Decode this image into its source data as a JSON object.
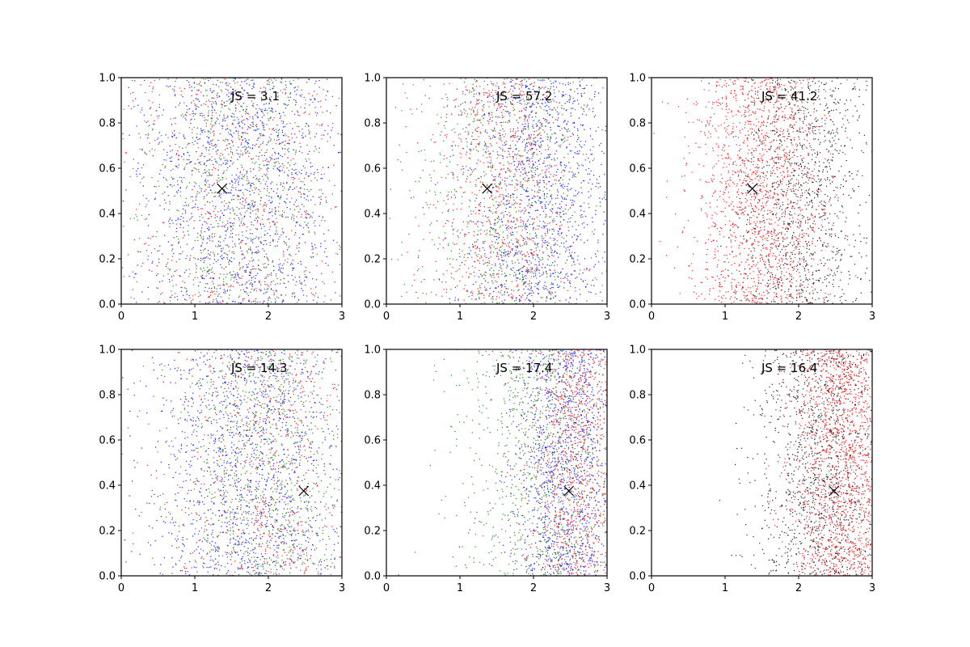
{
  "colors": {
    "blue": "#0000ff",
    "green": "#008000",
    "red": "#ff0000",
    "black": "#000000"
  },
  "chart_data": [
    {
      "type": "scatter",
      "annotation": "JS = 3.1",
      "xlim": [
        0,
        3
      ],
      "ylim": [
        0,
        1
      ],
      "xticks": [
        "0",
        "1",
        "2",
        "3"
      ],
      "yticks": [
        "0.0",
        "0.2",
        "0.4",
        "0.6",
        "0.8",
        "1.0"
      ],
      "marker": {
        "x": 1.37,
        "y": 0.51,
        "symbol": "x"
      },
      "series": [
        {
          "color": "blue",
          "x_mean": 1.65,
          "x_sd": 0.7,
          "count": 1400
        },
        {
          "color": "green",
          "x_mean": 1.5,
          "x_sd": 0.75,
          "count": 700
        },
        {
          "color": "red",
          "x_mean": 1.55,
          "x_sd": 0.75,
          "count": 700
        }
      ]
    },
    {
      "type": "scatter",
      "annotation": "JS = 57.2",
      "xlim": [
        0,
        3
      ],
      "ylim": [
        0,
        1
      ],
      "xticks": [
        "0",
        "1",
        "2",
        "3"
      ],
      "yticks": [
        "0.0",
        "0.2",
        "0.4",
        "0.6",
        "0.8",
        "1.0"
      ],
      "marker": {
        "x": 1.37,
        "y": 0.51,
        "symbol": "x"
      },
      "series": [
        {
          "color": "blue",
          "x_mean": 2.05,
          "x_sd": 0.5,
          "count": 1300
        },
        {
          "color": "green",
          "x_mean": 1.6,
          "x_sd": 0.7,
          "count": 700
        },
        {
          "color": "red",
          "x_mean": 1.6,
          "x_sd": 0.45,
          "count": 900
        }
      ]
    },
    {
      "type": "scatter",
      "annotation": "JS = 41.2",
      "xlim": [
        0,
        3
      ],
      "ylim": [
        0,
        1
      ],
      "xticks": [
        "0",
        "1",
        "2",
        "3"
      ],
      "yticks": [
        "0.0",
        "0.2",
        "0.4",
        "0.6",
        "0.8",
        "1.0"
      ],
      "marker": {
        "x": 1.37,
        "y": 0.51,
        "symbol": "x"
      },
      "series": [
        {
          "color": "black",
          "x_mean": 2.1,
          "x_sd": 0.45,
          "count": 1100
        },
        {
          "color": "red",
          "x_mean": 1.5,
          "x_sd": 0.45,
          "count": 1600
        }
      ]
    },
    {
      "type": "scatter",
      "annotation": "JS = 14.3",
      "xlim": [
        0,
        3
      ],
      "ylim": [
        0,
        1
      ],
      "xticks": [
        "0",
        "1",
        "2",
        "3"
      ],
      "yticks": [
        "0.0",
        "0.2",
        "0.4",
        "0.6",
        "0.8",
        "1.0"
      ],
      "marker": {
        "x": 2.48,
        "y": 0.375,
        "symbol": "x"
      },
      "series": [
        {
          "color": "blue",
          "x_mean": 1.75,
          "x_sd": 0.7,
          "count": 1400
        },
        {
          "color": "green",
          "x_mean": 1.95,
          "x_sd": 0.6,
          "count": 800
        },
        {
          "color": "red",
          "x_mean": 1.9,
          "x_sd": 0.6,
          "count": 700
        }
      ]
    },
    {
      "type": "scatter",
      "annotation": "JS = 17.4",
      "xlim": [
        0,
        3
      ],
      "ylim": [
        0,
        1
      ],
      "xticks": [
        "0",
        "1",
        "2",
        "3"
      ],
      "yticks": [
        "0.0",
        "0.2",
        "0.4",
        "0.6",
        "0.8",
        "1.0"
      ],
      "marker": {
        "x": 2.48,
        "y": 0.375,
        "symbol": "x"
      },
      "series": [
        {
          "color": "blue",
          "x_mean": 2.45,
          "x_sd": 0.4,
          "count": 1300
        },
        {
          "color": "green",
          "x_mean": 2.05,
          "x_sd": 0.55,
          "count": 800
        },
        {
          "color": "red",
          "x_mean": 2.6,
          "x_sd": 0.35,
          "count": 1000
        }
      ]
    },
    {
      "type": "scatter",
      "annotation": "JS = 16.4",
      "xlim": [
        0,
        3
      ],
      "ylim": [
        0,
        1
      ],
      "xticks": [
        "0",
        "1",
        "2",
        "3"
      ],
      "yticks": [
        "0.0",
        "0.2",
        "0.4",
        "0.6",
        "0.8",
        "1.0"
      ],
      "marker": {
        "x": 2.48,
        "y": 0.375,
        "symbol": "x"
      },
      "series": [
        {
          "color": "black",
          "x_mean": 2.3,
          "x_sd": 0.45,
          "count": 1200
        },
        {
          "color": "red",
          "x_mean": 2.6,
          "x_sd": 0.35,
          "count": 1700
        }
      ]
    }
  ]
}
